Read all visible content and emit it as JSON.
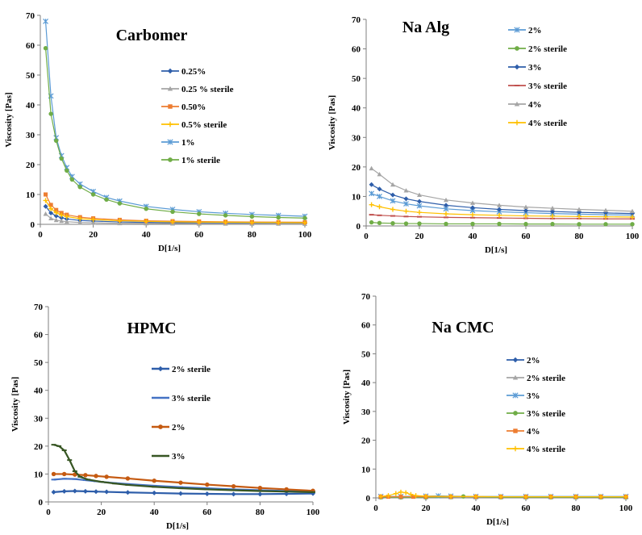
{
  "chart_data": [
    {
      "type": "scatter",
      "title": "Carbomer",
      "xlabel": "D[1/s]",
      "ylabel": "Viscosity [Pas]",
      "xlim": [
        0,
        100
      ],
      "ylim": [
        0,
        70
      ],
      "xticks": [
        0,
        20,
        40,
        60,
        80,
        100
      ],
      "yticks": [
        0,
        10,
        20,
        30,
        40,
        50,
        60,
        70
      ],
      "legend_position": "right",
      "series": [
        {
          "name": "0.25%",
          "color": "#2E5EAA",
          "marker": "diamond",
          "x": [
            2,
            4,
            6,
            8,
            10,
            15,
            20,
            30,
            40,
            50,
            60,
            70,
            80,
            90,
            100
          ],
          "y": [
            6,
            3.8,
            2.8,
            2.2,
            1.8,
            1.3,
            1.1,
            0.8,
            0.65,
            0.55,
            0.5,
            0.45,
            0.4,
            0.38,
            0.35
          ]
        },
        {
          "name": "0.25 % sterile",
          "color": "#A5A5A5",
          "marker": "triangle",
          "x": [
            2,
            4,
            6,
            8,
            10,
            15,
            20,
            30,
            40,
            50,
            60,
            70,
            80,
            90,
            100
          ],
          "y": [
            3.5,
            2,
            1.4,
            1.1,
            0.9,
            0.6,
            0.5,
            0.35,
            0.3,
            0.25,
            0.22,
            0.2,
            0.18,
            0.17,
            0.15
          ]
        },
        {
          "name": "0.50%",
          "color": "#ED7D31",
          "marker": "square",
          "x": [
            2,
            4,
            6,
            8,
            10,
            15,
            20,
            30,
            40,
            50,
            60,
            70,
            80,
            90,
            100
          ],
          "y": [
            10,
            6.5,
            4.8,
            3.8,
            3.2,
            2.4,
            2,
            1.5,
            1.2,
            1.05,
            0.95,
            0.85,
            0.8,
            0.75,
            0.7
          ]
        },
        {
          "name": "0.5% sterile",
          "color": "#FFC000",
          "marker": "cross",
          "x": [
            2,
            4,
            6,
            8,
            10,
            15,
            20,
            30,
            40,
            50,
            60,
            70,
            80,
            90,
            100
          ],
          "y": [
            8,
            5.2,
            3.9,
            3.1,
            2.6,
            1.9,
            1.6,
            1.2,
            1,
            0.85,
            0.75,
            0.7,
            0.65,
            0.6,
            0.55
          ]
        },
        {
          "name": "1%",
          "color": "#5B9BD5",
          "marker": "star",
          "x": [
            2,
            4,
            6,
            8,
            10,
            12,
            15,
            20,
            25,
            30,
            40,
            50,
            60,
            70,
            80,
            90,
            100
          ],
          "y": [
            68,
            43,
            29,
            23,
            19,
            16,
            13.5,
            11,
            9,
            7.8,
            6,
            5,
            4.2,
            3.7,
            3.3,
            3,
            2.7
          ]
        },
        {
          "name": "1% sterile",
          "color": "#70AD47",
          "marker": "circle",
          "x": [
            2,
            4,
            6,
            8,
            10,
            12,
            15,
            20,
            25,
            30,
            40,
            50,
            60,
            70,
            80,
            90,
            100
          ],
          "y": [
            59,
            37,
            28,
            22,
            18,
            15,
            12.5,
            10,
            8.3,
            7,
            5.2,
            4.2,
            3.5,
            3,
            2.6,
            2.3,
            2.1
          ]
        }
      ]
    },
    {
      "type": "scatter",
      "title": "Na Alg",
      "xlabel": "D[1/s]",
      "ylabel": "Viscosity [Pas]",
      "xlim": [
        0,
        100
      ],
      "ylim": [
        0,
        70
      ],
      "xticks": [
        0,
        20,
        40,
        60,
        80,
        100
      ],
      "yticks": [
        0,
        10,
        20,
        30,
        40,
        50,
        60,
        70
      ],
      "legend_position": "top-right",
      "series": [
        {
          "name": "2%",
          "color": "#5B9BD5",
          "marker": "star",
          "x": [
            2,
            5,
            10,
            15,
            20,
            30,
            40,
            50,
            60,
            70,
            80,
            90,
            100
          ],
          "y": [
            11,
            10,
            8.5,
            7.5,
            6.8,
            5.8,
            5.2,
            4.8,
            4.5,
            4.2,
            4,
            3.8,
            3.7
          ]
        },
        {
          "name": "2% sterile",
          "color": "#70AD47",
          "marker": "circle",
          "x": [
            2,
            5,
            10,
            15,
            20,
            30,
            40,
            50,
            60,
            70,
            80,
            90,
            100
          ],
          "y": [
            1.2,
            1,
            0.9,
            0.8,
            0.8,
            0.7,
            0.7,
            0.7,
            0.65,
            0.65,
            0.6,
            0.6,
            0.6
          ]
        },
        {
          "name": "3%",
          "color": "#2E5EAA",
          "marker": "diamond",
          "x": [
            2,
            5,
            10,
            15,
            20,
            30,
            40,
            50,
            60,
            70,
            80,
            90,
            100
          ],
          "y": [
            14,
            12.5,
            10.5,
            9.2,
            8.3,
            7,
            6.2,
            5.6,
            5.2,
            4.9,
            4.6,
            4.4,
            4.2
          ]
        },
        {
          "name": "3% sterile",
          "color": "#C0504D",
          "marker": "dash",
          "x": [
            2,
            5,
            10,
            15,
            20,
            30,
            40,
            50,
            60,
            70,
            80,
            90,
            100
          ],
          "y": [
            3.8,
            3.6,
            3.4,
            3.2,
            3.1,
            2.9,
            2.8,
            2.7,
            2.6,
            2.5,
            2.5,
            2.4,
            2.4
          ]
        },
        {
          "name": "4%",
          "color": "#A5A5A5",
          "marker": "triangle",
          "x": [
            2,
            5,
            10,
            15,
            20,
            30,
            40,
            50,
            60,
            70,
            80,
            90,
            100
          ],
          "y": [
            19.5,
            17.5,
            14,
            12,
            10.5,
            8.8,
            7.8,
            7,
            6.4,
            6,
            5.6,
            5.3,
            5
          ]
        },
        {
          "name": "4% sterile",
          "color": "#FFC000",
          "marker": "cross",
          "x": [
            2,
            5,
            10,
            15,
            20,
            30,
            40,
            50,
            60,
            70,
            80,
            90,
            100
          ],
          "y": [
            7.2,
            6.5,
            5.6,
            5,
            4.6,
            4.1,
            3.8,
            3.6,
            3.4,
            3.3,
            3.2,
            3.1,
            3
          ]
        }
      ]
    },
    {
      "type": "line",
      "title": "HPMC",
      "xlabel": "D[1/s]",
      "ylabel": "Viscosity [Pas]",
      "xlim": [
        0,
        100
      ],
      "ylim": [
        0,
        70
      ],
      "xticks": [
        0,
        20,
        40,
        60,
        80,
        100
      ],
      "yticks": [
        0,
        10,
        20,
        30,
        40,
        50,
        60,
        70
      ],
      "legend_position": "right",
      "series": [
        {
          "name": "2% sterile",
          "color": "#2E5EAA",
          "marker": "diamond",
          "x": [
            2,
            6,
            10,
            14,
            18,
            22,
            30,
            40,
            50,
            60,
            70,
            80,
            90,
            100
          ],
          "y": [
            3.5,
            3.8,
            3.9,
            3.8,
            3.7,
            3.6,
            3.4,
            3.2,
            3,
            2.9,
            2.8,
            2.8,
            2.9,
            3
          ]
        },
        {
          "name": "3% sterile",
          "color": "#4472C4",
          "marker": "dash",
          "x": [
            2,
            6,
            10,
            14,
            18,
            22,
            30,
            40,
            50,
            60,
            70,
            80,
            90,
            100
          ],
          "y": [
            8,
            8.3,
            8.2,
            7.8,
            7.4,
            7,
            6.4,
            5.8,
            5.3,
            4.9,
            4.5,
            4.2,
            3.9,
            3.7
          ]
        },
        {
          "name": "2%",
          "color": "#C55A11",
          "marker": "circle",
          "x": [
            2,
            6,
            10,
            14,
            18,
            22,
            30,
            40,
            50,
            60,
            70,
            80,
            90,
            100
          ],
          "y": [
            10,
            10,
            9.8,
            9.6,
            9.3,
            9,
            8.4,
            7.6,
            6.9,
            6.2,
            5.6,
            5,
            4.5,
            4
          ]
        },
        {
          "name": "3%",
          "color": "#375623",
          "marker": "dash",
          "x": [
            2,
            4,
            6,
            8,
            10,
            12,
            15,
            20,
            25,
            30,
            40,
            50,
            60,
            70,
            80,
            90,
            100
          ],
          "y": [
            20.5,
            20,
            18.5,
            15,
            11,
            9,
            8,
            7.2,
            6.6,
            6.1,
            5.4,
            4.9,
            4.5,
            4.2,
            3.9,
            3.7,
            3.5
          ]
        }
      ]
    },
    {
      "type": "scatter",
      "title": "Na CMC",
      "xlabel": "D[1/s]",
      "ylabel": "Viscosity [Pas]",
      "xlim": [
        0,
        100
      ],
      "ylim": [
        0,
        70
      ],
      "xticks": [
        0,
        20,
        40,
        60,
        80,
        100
      ],
      "yticks": [
        0,
        10,
        20,
        30,
        40,
        50,
        60,
        70
      ],
      "legend_position": "right",
      "series": [
        {
          "name": "2%",
          "color": "#2E5EAA",
          "marker": "diamond",
          "x": [
            2,
            10,
            20,
            30,
            40,
            50,
            60,
            70,
            80,
            90,
            100
          ],
          "y": [
            0.3,
            0.3,
            0.3,
            0.3,
            0.3,
            0.3,
            0.3,
            0.3,
            0.3,
            0.3,
            0.3
          ]
        },
        {
          "name": "2% sterile",
          "color": "#A5A5A5",
          "marker": "triangle",
          "x": [
            2,
            10,
            20,
            30,
            40,
            50,
            60,
            70,
            80,
            90,
            100
          ],
          "y": [
            0.2,
            0.2,
            0.2,
            0.2,
            0.2,
            0.2,
            0.2,
            0.2,
            0.2,
            0.2,
            0.2
          ]
        },
        {
          "name": "3%",
          "color": "#5B9BD5",
          "marker": "star",
          "x": [
            2,
            10,
            20,
            25,
            30,
            40,
            50,
            60,
            70,
            80,
            90,
            100
          ],
          "y": [
            0.5,
            0.5,
            0.6,
            0.7,
            0.6,
            0.5,
            0.5,
            0.5,
            0.5,
            0.5,
            0.5,
            0.5
          ]
        },
        {
          "name": "3% sterile",
          "color": "#70AD47",
          "marker": "circle",
          "x": [
            2,
            10,
            20,
            30,
            35,
            40,
            50,
            60,
            70,
            80,
            90,
            100
          ],
          "y": [
            0.2,
            0.2,
            0.2,
            0.3,
            0.5,
            0.3,
            0.2,
            0.2,
            0.2,
            0.2,
            0.2,
            0.2
          ]
        },
        {
          "name": "4%",
          "color": "#ED7D31",
          "marker": "square",
          "x": [
            2,
            5,
            10,
            15,
            20,
            30,
            40,
            50,
            60,
            70,
            80,
            90,
            100
          ],
          "y": [
            0.4,
            0.4,
            0.4,
            0.4,
            0.4,
            0.4,
            0.4,
            0.4,
            0.4,
            0.4,
            0.4,
            0.4,
            0.4
          ]
        },
        {
          "name": "4% sterile",
          "color": "#FFC000",
          "marker": "cross",
          "x": [
            2,
            5,
            8,
            10,
            12,
            14,
            16,
            20,
            30,
            40,
            50,
            60,
            70,
            80,
            90,
            100
          ],
          "y": [
            0.5,
            0.8,
            1.5,
            2,
            1.8,
            1.2,
            0.8,
            0.6,
            0.5,
            0.5,
            0.4,
            0.4,
            0.4,
            0.4,
            0.4,
            0.4
          ]
        }
      ]
    }
  ]
}
